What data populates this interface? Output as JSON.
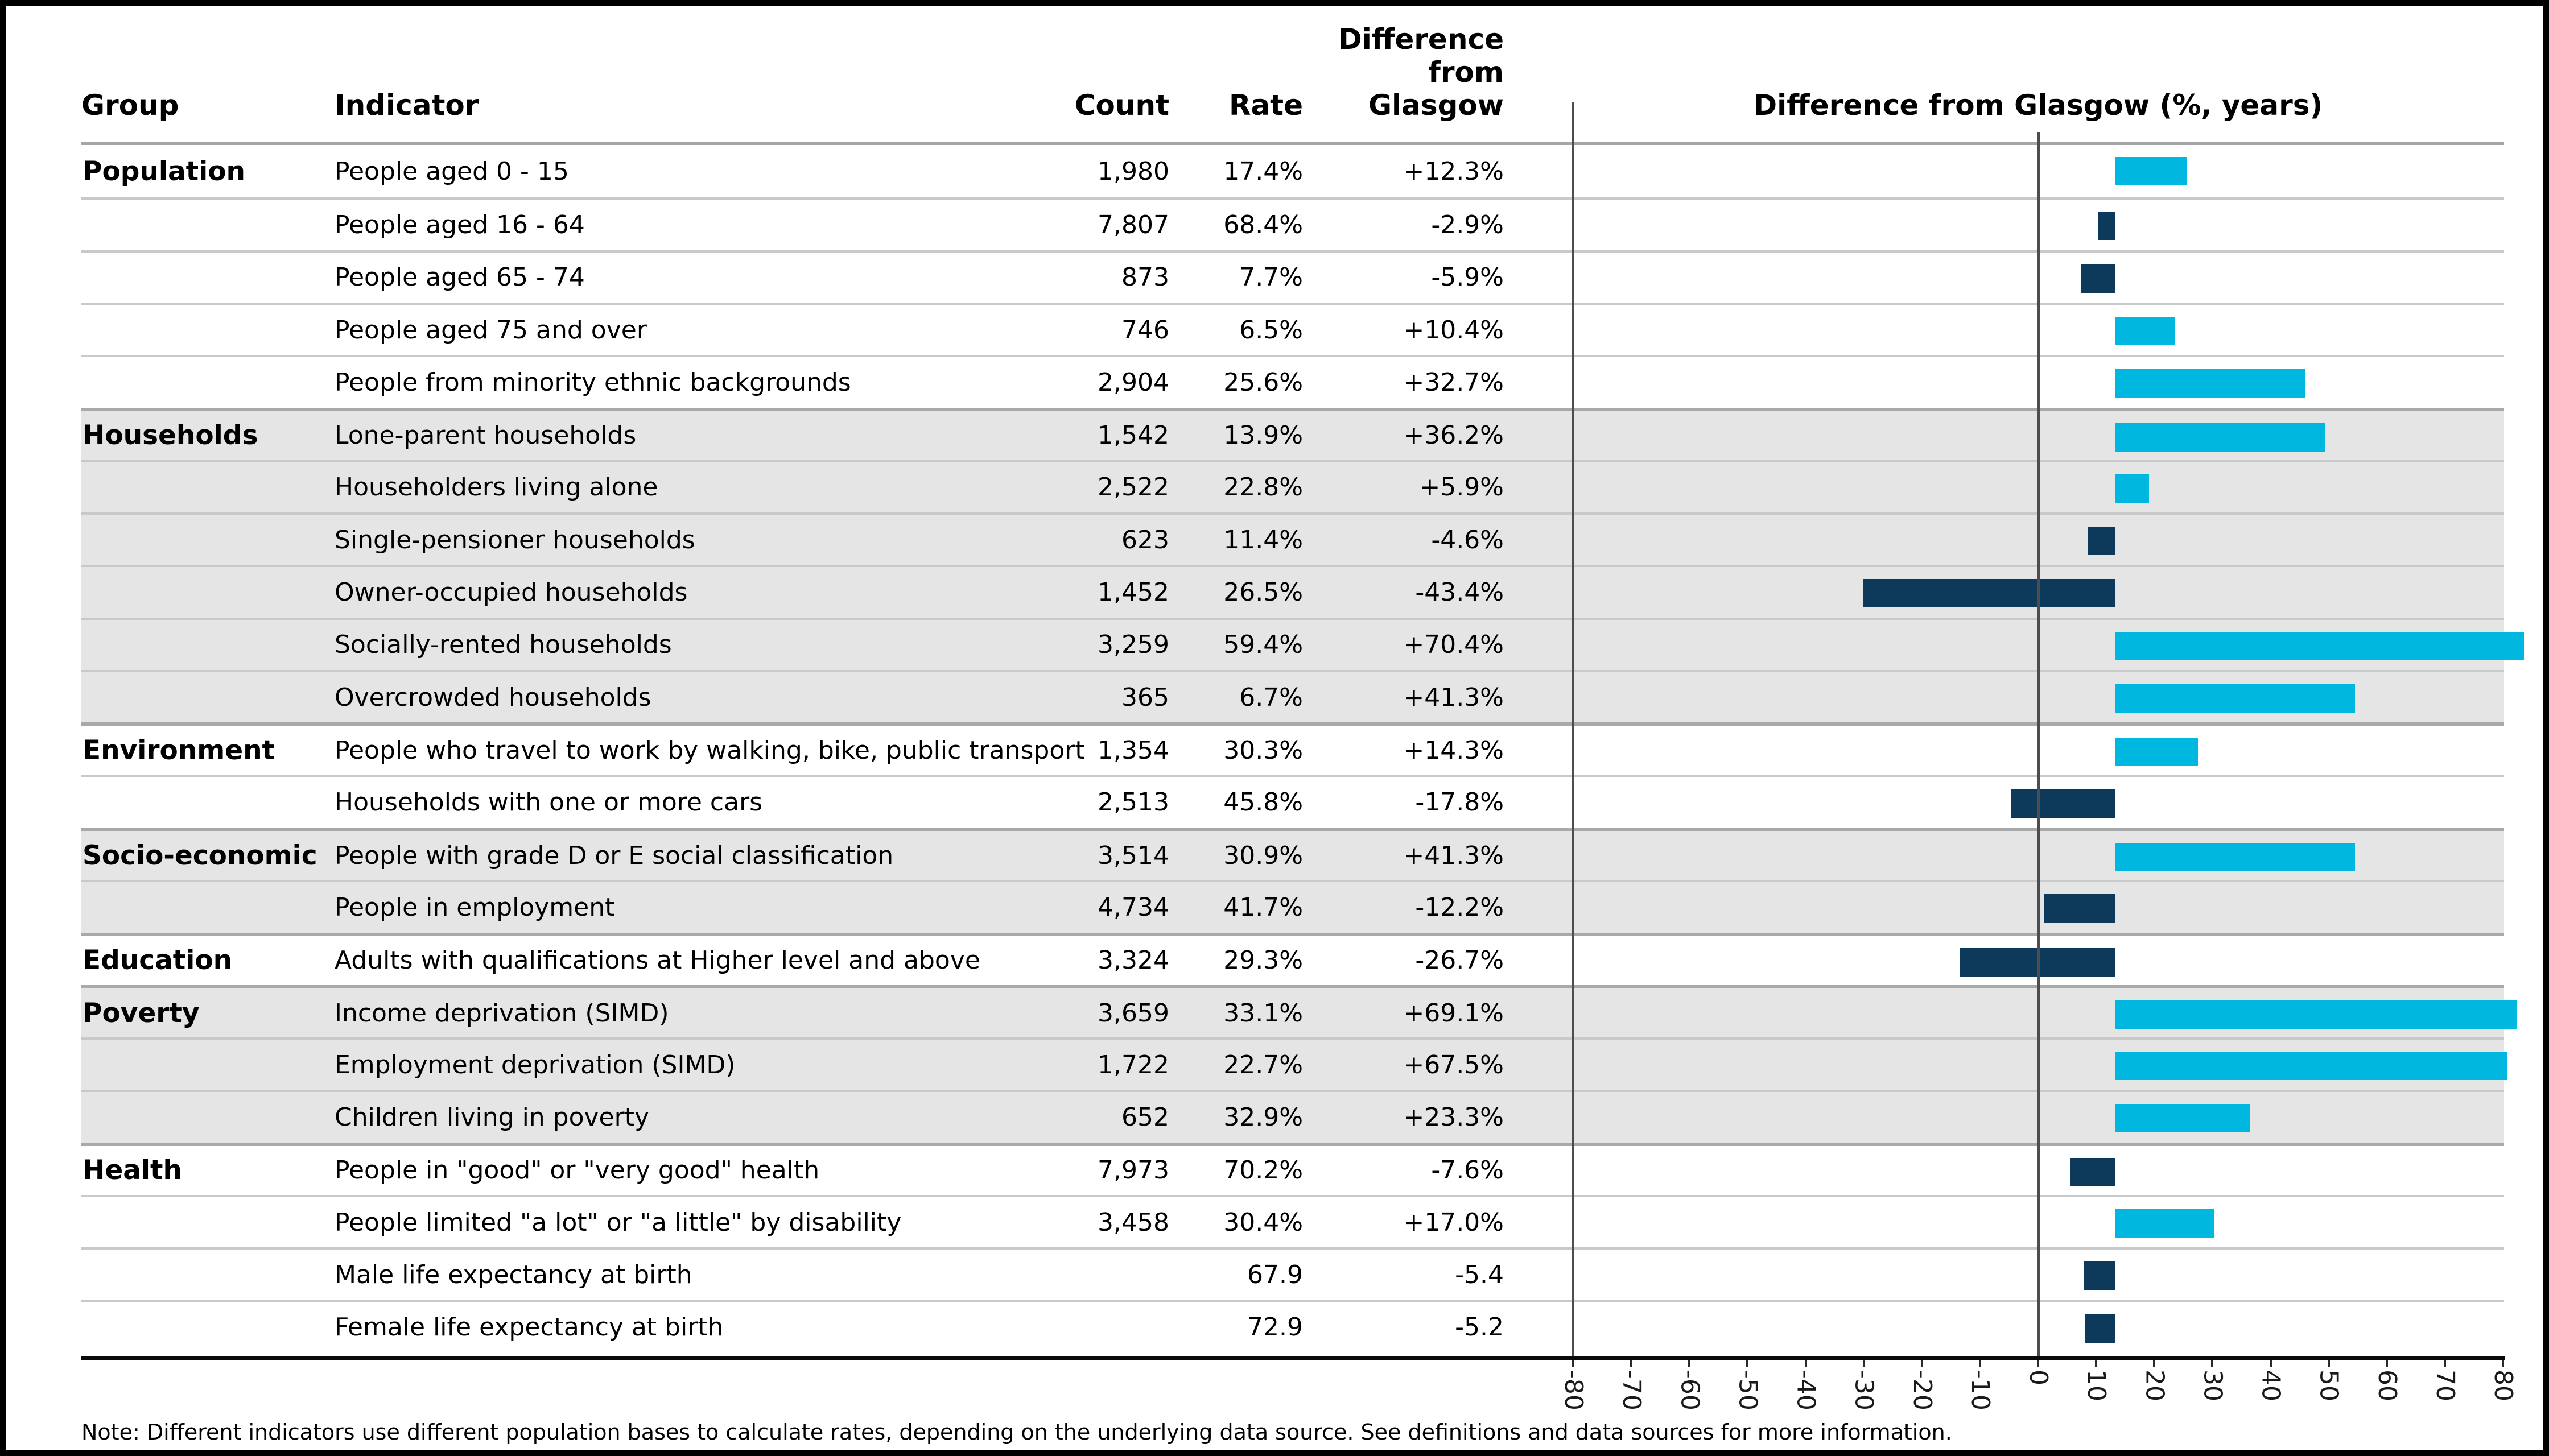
{
  "header": {
    "group_label": "Group",
    "indicator_label": "Indicator",
    "count_label": "Count",
    "rate_label": "Rate",
    "difference_label": "Difference\nfrom\nGlasgow"
  },
  "chart": {
    "title": "Difference from Glasgow (%, years)"
  },
  "note": "Note: Different indicators use different population bases to calculate rates, depending on the underlying data source. See definitions and data sources for more information.",
  "colors": {
    "positive_bar": "#00b7e0",
    "negative_bar": "#0d3a5b",
    "shaded_row": "#e5e5e5"
  },
  "groups": [
    {
      "name": "Population",
      "shaded": false,
      "rows": [
        {
          "indicator": "People aged 0 - 15",
          "count": "1,980",
          "rate": "17.4%",
          "difference": "+12.3%",
          "value": 12.3
        },
        {
          "indicator": "People aged 16 - 64",
          "count": "7,807",
          "rate": "68.4%",
          "difference": "-2.9%",
          "value": -2.9
        },
        {
          "indicator": "People aged 65 - 74",
          "count": "873",
          "rate": "7.7%",
          "difference": "-5.9%",
          "value": -5.9
        },
        {
          "indicator": "People aged 75 and over",
          "count": "746",
          "rate": "6.5%",
          "difference": "+10.4%",
          "value": 10.4
        },
        {
          "indicator": "People from minority ethnic backgrounds",
          "count": "2,904",
          "rate": "25.6%",
          "difference": "+32.7%",
          "value": 32.7
        }
      ]
    },
    {
      "name": "Households",
      "shaded": true,
      "rows": [
        {
          "indicator": "Lone-parent households",
          "count": "1,542",
          "rate": "13.9%",
          "difference": "+36.2%",
          "value": 36.2
        },
        {
          "indicator": "Householders living alone",
          "count": "2,522",
          "rate": "22.8%",
          "difference": "+5.9%",
          "value": 5.9
        },
        {
          "indicator": "Single-pensioner households",
          "count": "623",
          "rate": "11.4%",
          "difference": "-4.6%",
          "value": -4.6
        },
        {
          "indicator": "Owner-occupied households",
          "count": "1,452",
          "rate": "26.5%",
          "difference": "-43.4%",
          "value": -43.4
        },
        {
          "indicator": "Socially-rented households",
          "count": "3,259",
          "rate": "59.4%",
          "difference": "+70.4%",
          "value": 70.4
        },
        {
          "indicator": "Overcrowded households",
          "count": "365",
          "rate": "6.7%",
          "difference": "+41.3%",
          "value": 41.3
        }
      ]
    },
    {
      "name": "Environment",
      "shaded": false,
      "rows": [
        {
          "indicator": "People who travel to work by walking, bike, public transport",
          "count": "1,354",
          "rate": "30.3%",
          "difference": "+14.3%",
          "value": 14.3
        },
        {
          "indicator": "Households with one or more cars",
          "count": "2,513",
          "rate": "45.8%",
          "difference": "-17.8%",
          "value": -17.8
        }
      ]
    },
    {
      "name": "Socio-economic",
      "shaded": true,
      "rows": [
        {
          "indicator": "People with grade D or E social classification",
          "count": "3,514",
          "rate": "30.9%",
          "difference": "+41.3%",
          "value": 41.3
        },
        {
          "indicator": "People in employment",
          "count": "4,734",
          "rate": "41.7%",
          "difference": "-12.2%",
          "value": -12.2
        }
      ]
    },
    {
      "name": "Education",
      "shaded": false,
      "rows": [
        {
          "indicator": "Adults with qualifications at Higher level and above",
          "count": "3,324",
          "rate": "29.3%",
          "difference": "-26.7%",
          "value": -26.7
        }
      ]
    },
    {
      "name": "Poverty",
      "shaded": true,
      "rows": [
        {
          "indicator": "Income deprivation (SIMD)",
          "count": "3,659",
          "rate": "33.1%",
          "difference": "+69.1%",
          "value": 69.1
        },
        {
          "indicator": "Employment deprivation (SIMD)",
          "count": "1,722",
          "rate": "22.7%",
          "difference": "+67.5%",
          "value": 67.5
        },
        {
          "indicator": "Children living in poverty",
          "count": "652",
          "rate": "32.9%",
          "difference": "+23.3%",
          "value": 23.3
        }
      ]
    },
    {
      "name": "Health",
      "shaded": false,
      "rows": [
        {
          "indicator": "People in \"good\" or \"very good\" health",
          "count": "7,973",
          "rate": "70.2%",
          "difference": "-7.6%",
          "value": -7.6
        },
        {
          "indicator": "People limited \"a lot\" or \"a little\" by disability",
          "count": "3,458",
          "rate": "30.4%",
          "difference": "+17.0%",
          "value": 17.0
        },
        {
          "indicator": "Male life expectancy at birth",
          "count": "",
          "rate": "67.9",
          "difference": "-5.4",
          "value": -5.4
        },
        {
          "indicator": "Female life expectancy at birth",
          "count": "",
          "rate": "72.9",
          "difference": "-5.2",
          "value": -5.2
        }
      ]
    }
  ],
  "chart_data": {
    "type": "bar",
    "orientation": "horizontal",
    "title": "Difference from Glasgow (%, years)",
    "xlabel": "",
    "ylabel": "",
    "xlim": [
      -80,
      80
    ],
    "xticks": [
      -80,
      -70,
      -60,
      -50,
      -40,
      -30,
      -20,
      -10,
      0,
      10,
      20,
      30,
      40,
      50,
      60,
      70,
      80
    ],
    "grid": false,
    "legend": "none",
    "categories": [
      "People aged 0 - 15",
      "People aged 16 - 64",
      "People aged 65 - 74",
      "People aged 75 and over",
      "People from minority ethnic backgrounds",
      "Lone-parent households",
      "Householders living alone",
      "Single-pensioner households",
      "Owner-occupied households",
      "Socially-rented households",
      "Overcrowded households",
      "People who travel to work by walking, bike, public transport",
      "Households with one or more cars",
      "People with grade D or E social classification",
      "People in employment",
      "Adults with qualifications at Higher level and above",
      "Income deprivation (SIMD)",
      "Employment deprivation (SIMD)",
      "Children living in poverty",
      "People in \"good\" or \"very good\" health",
      "People limited \"a lot\" or \"a little\" by disability",
      "Male life expectancy at birth",
      "Female life expectancy at birth"
    ],
    "values": [
      12.3,
      -2.9,
      -5.9,
      10.4,
      32.7,
      36.2,
      5.9,
      -4.6,
      -43.4,
      70.4,
      41.3,
      14.3,
      -17.8,
      41.3,
      -12.2,
      -26.7,
      69.1,
      67.5,
      23.3,
      -7.6,
      17.0,
      -5.4,
      -5.2
    ]
  }
}
